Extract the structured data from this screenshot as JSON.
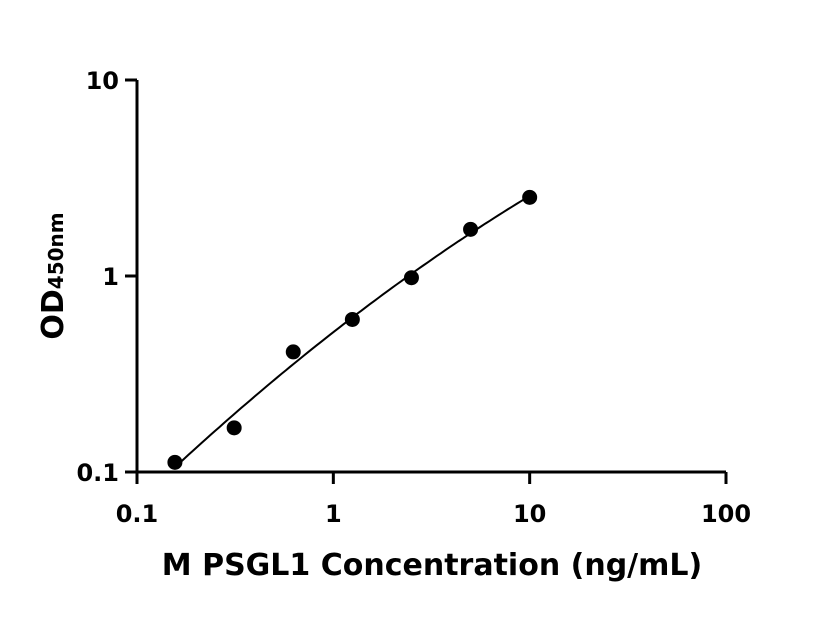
{
  "chart_data": {
    "type": "scatter",
    "title": "",
    "xlabel": "M PSGL1 Concentration (ng/mL)",
    "ylabel_main": "OD",
    "ylabel_sub": "450nm",
    "x_scale": "log",
    "y_scale": "log",
    "xlim": [
      0.1,
      100
    ],
    "ylim": [
      0.1,
      10
    ],
    "x_ticks": [
      0.1,
      1,
      10,
      100
    ],
    "x_tick_labels": [
      "0.1",
      "1",
      "10",
      "100"
    ],
    "y_ticks": [
      0.1,
      1,
      10
    ],
    "y_tick_labels": [
      "0.1",
      "1",
      "10"
    ],
    "grid": false,
    "legend": "none",
    "marker_color": "#000000",
    "line_color": "#000000",
    "series": [
      {
        "x": [
          0.156,
          0.3125,
          0.625,
          1.25,
          2.5,
          5,
          10
        ],
        "y": [
          0.112,
          0.168,
          0.41,
          0.6,
          0.98,
          1.73,
          2.52
        ]
      }
    ]
  }
}
